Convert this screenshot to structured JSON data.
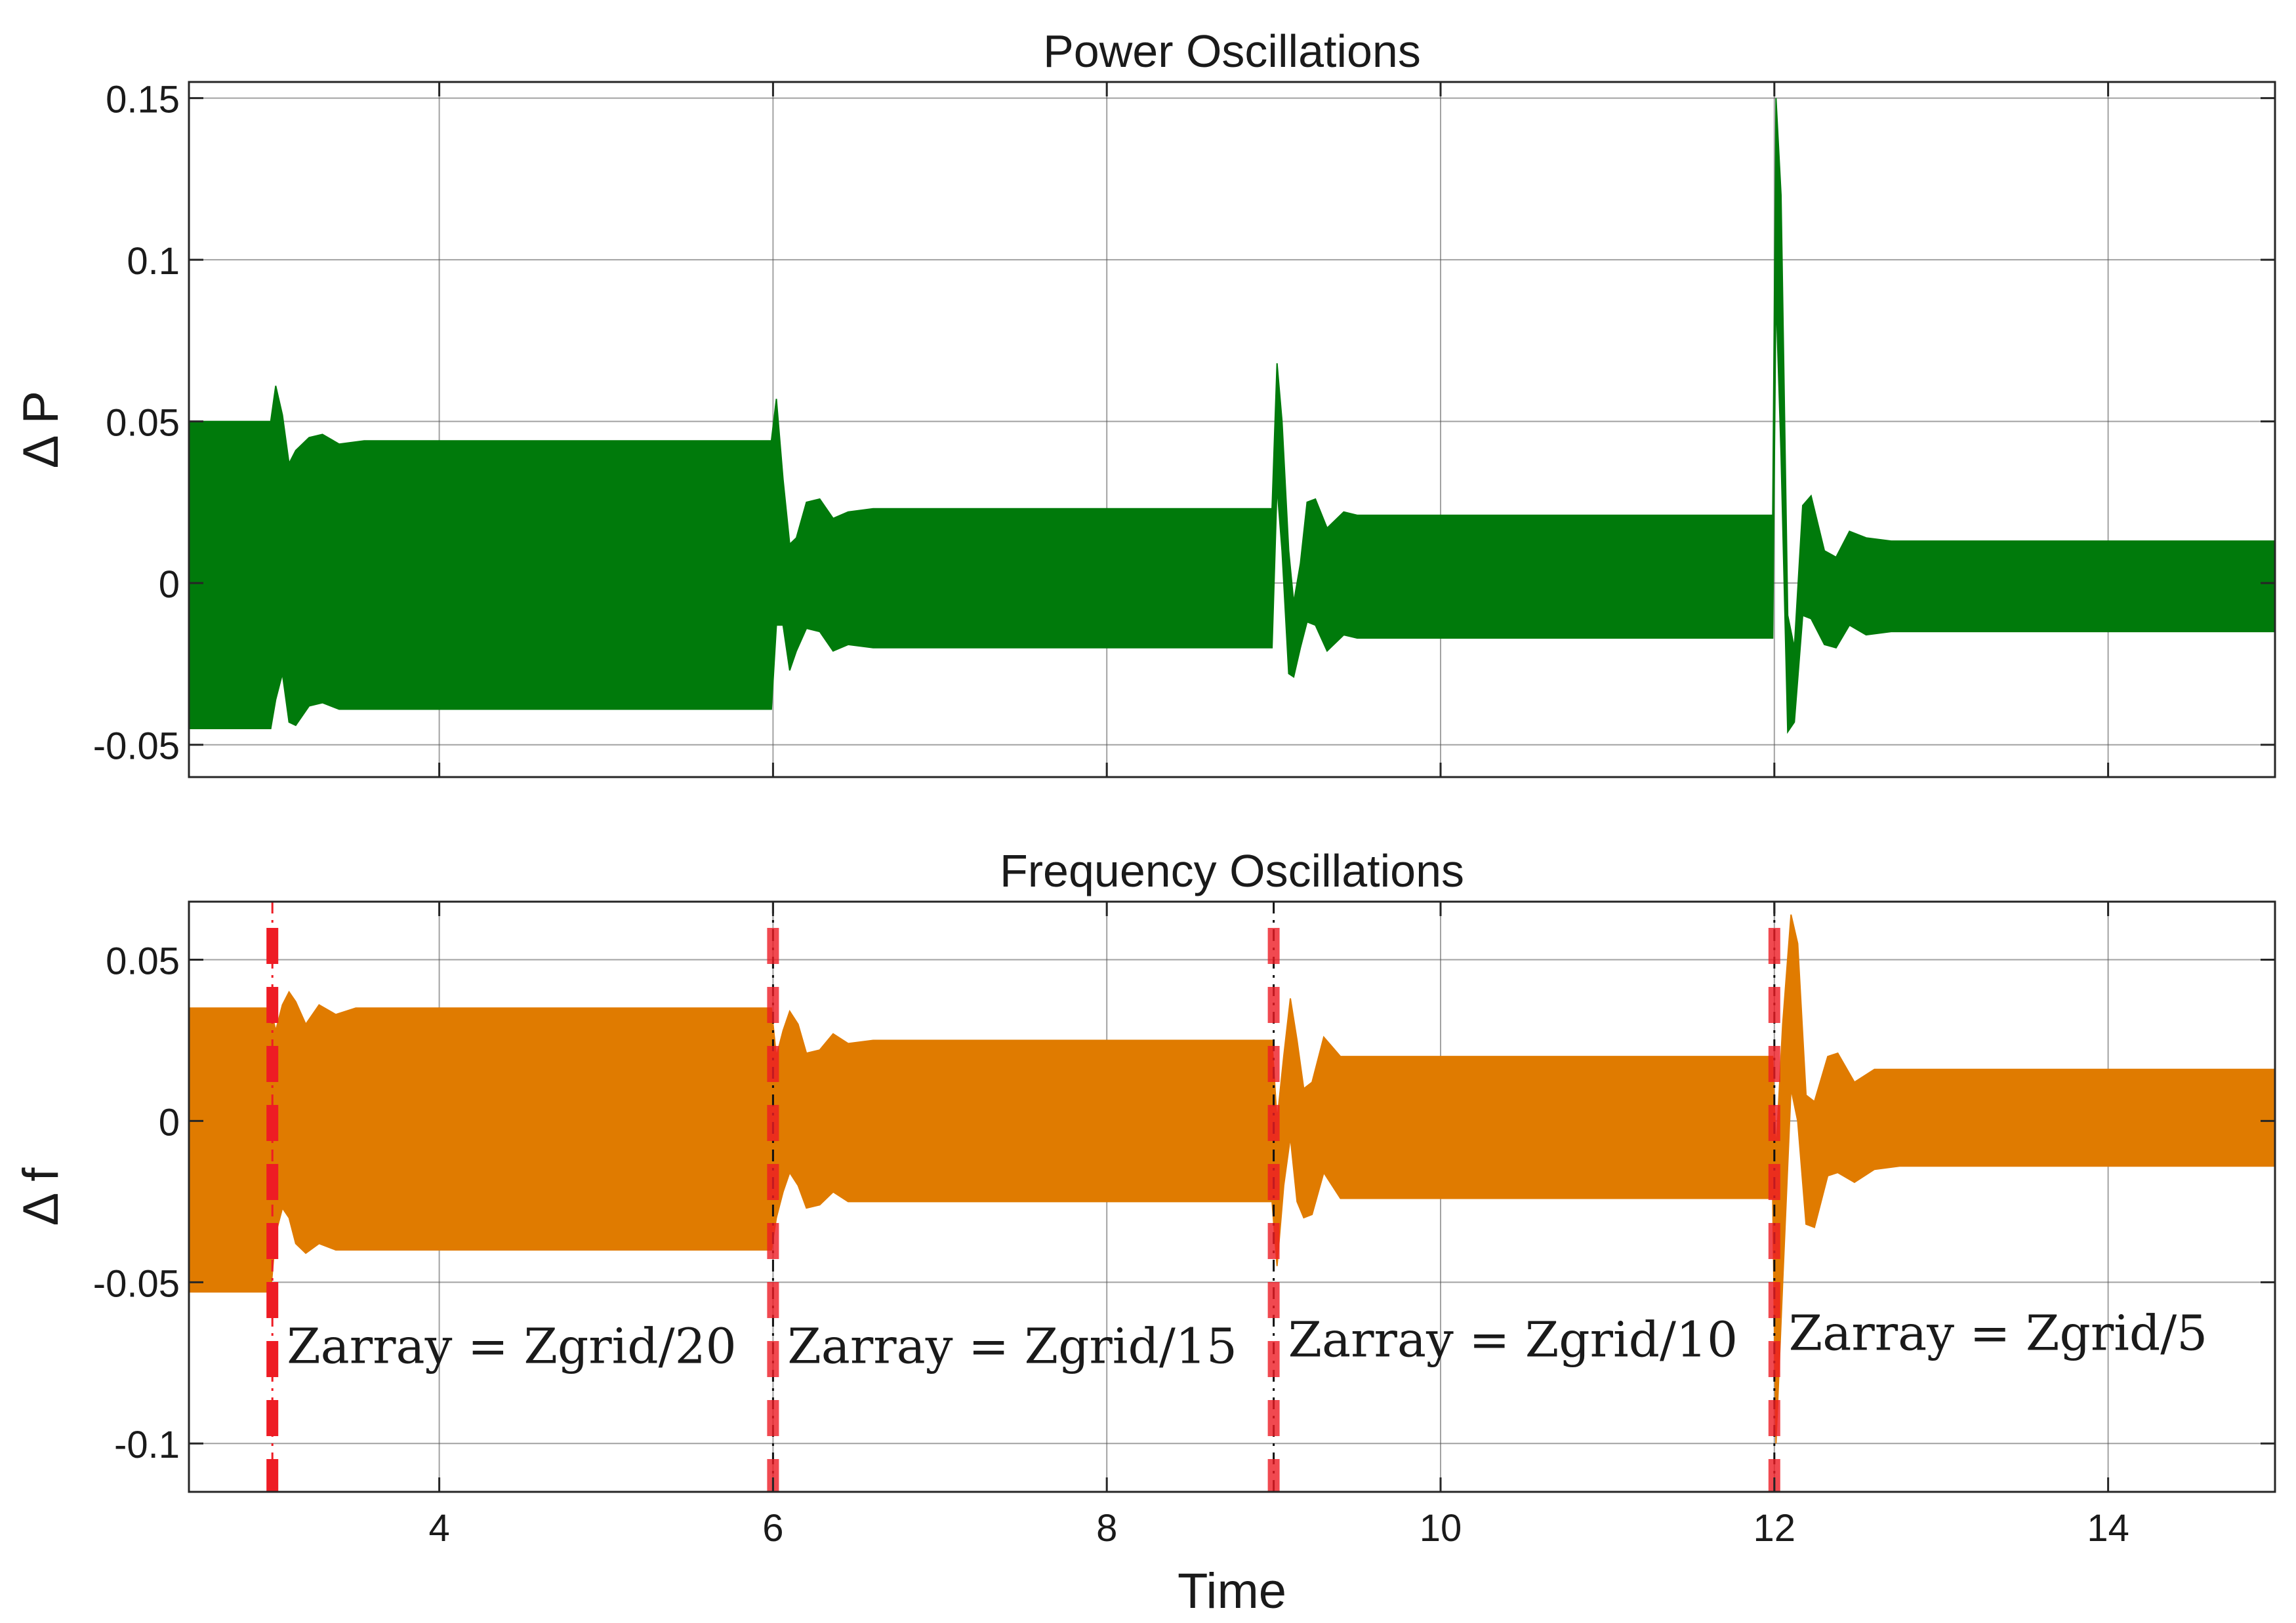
{
  "colors": {
    "power": "#007a0b",
    "frequency": "#e07b00",
    "marker_red": "#ee1c24",
    "marker_black": "#111111",
    "grid": "#555555"
  },
  "chart_data": [
    {
      "type": "area",
      "title": "Power Oscillations",
      "xlabel": "",
      "ylabel": "Δ P",
      "xlim": [
        2.5,
        15
      ],
      "ylim": [
        -0.06,
        0.155
      ],
      "xticks": [
        4,
        6,
        8,
        10,
        12,
        14
      ],
      "xtick_labels_shown": false,
      "yticks": [
        -0.05,
        0,
        0.05,
        0.1,
        0.15
      ],
      "ytick_labels": [
        "-0.05",
        "0",
        "0.05",
        "0.1",
        "0.15"
      ],
      "grid": true,
      "series": [
        {
          "color": "#007a0b",
          "envelope": [
            {
              "x": 2.5,
              "hi": 0.05,
              "lo": -0.045
            },
            {
              "x": 2.99,
              "hi": 0.05,
              "lo": -0.045
            },
            {
              "x": 3.02,
              "hi": 0.061,
              "lo": -0.036
            },
            {
              "x": 3.06,
              "hi": 0.052,
              "lo": -0.028
            },
            {
              "x": 3.1,
              "hi": 0.037,
              "lo": -0.043
            },
            {
              "x": 3.14,
              "hi": 0.041,
              "lo": -0.044
            },
            {
              "x": 3.22,
              "hi": 0.045,
              "lo": -0.038
            },
            {
              "x": 3.3,
              "hi": 0.046,
              "lo": -0.037
            },
            {
              "x": 3.4,
              "hi": 0.043,
              "lo": -0.039
            },
            {
              "x": 3.55,
              "hi": 0.044,
              "lo": -0.039
            },
            {
              "x": 5.99,
              "hi": 0.044,
              "lo": -0.039
            },
            {
              "x": 6.02,
              "hi": 0.057,
              "lo": -0.013
            },
            {
              "x": 6.06,
              "hi": 0.032,
              "lo": -0.013
            },
            {
              "x": 6.1,
              "hi": 0.012,
              "lo": -0.027
            },
            {
              "x": 6.14,
              "hi": 0.014,
              "lo": -0.021
            },
            {
              "x": 6.2,
              "hi": 0.025,
              "lo": -0.014
            },
            {
              "x": 6.28,
              "hi": 0.026,
              "lo": -0.015
            },
            {
              "x": 6.36,
              "hi": 0.02,
              "lo": -0.021
            },
            {
              "x": 6.45,
              "hi": 0.022,
              "lo": -0.019
            },
            {
              "x": 6.6,
              "hi": 0.023,
              "lo": -0.02
            },
            {
              "x": 8.99,
              "hi": 0.023,
              "lo": -0.02
            },
            {
              "x": 9.02,
              "hi": 0.068,
              "lo": 0.03
            },
            {
              "x": 9.05,
              "hi": 0.05,
              "lo": 0.01
            },
            {
              "x": 9.09,
              "hi": 0.01,
              "lo": -0.028
            },
            {
              "x": 9.12,
              "hi": -0.006,
              "lo": -0.029
            },
            {
              "x": 9.16,
              "hi": 0.006,
              "lo": -0.02
            },
            {
              "x": 9.2,
              "hi": 0.025,
              "lo": -0.012
            },
            {
              "x": 9.25,
              "hi": 0.026,
              "lo": -0.013
            },
            {
              "x": 9.32,
              "hi": 0.017,
              "lo": -0.021
            },
            {
              "x": 9.42,
              "hi": 0.022,
              "lo": -0.016
            },
            {
              "x": 9.5,
              "hi": 0.021,
              "lo": -0.017
            },
            {
              "x": 11.99,
              "hi": 0.021,
              "lo": -0.017
            },
            {
              "x": 12.01,
              "hi": 0.15,
              "lo": 0.09
            },
            {
              "x": 12.04,
              "hi": 0.12,
              "lo": 0.04
            },
            {
              "x": 12.08,
              "hi": -0.01,
              "lo": -0.046
            },
            {
              "x": 12.12,
              "hi": -0.02,
              "lo": -0.043
            },
            {
              "x": 12.17,
              "hi": 0.024,
              "lo": -0.01
            },
            {
              "x": 12.22,
              "hi": 0.027,
              "lo": -0.011
            },
            {
              "x": 12.3,
              "hi": 0.01,
              "lo": -0.019
            },
            {
              "x": 12.37,
              "hi": 0.008,
              "lo": -0.02
            },
            {
              "x": 12.45,
              "hi": 0.016,
              "lo": -0.013
            },
            {
              "x": 12.55,
              "hi": 0.014,
              "lo": -0.016
            },
            {
              "x": 12.7,
              "hi": 0.013,
              "lo": -0.015
            },
            {
              "x": 15,
              "hi": 0.013,
              "lo": -0.015
            }
          ]
        }
      ]
    },
    {
      "type": "area",
      "title": "Frequency Oscillations",
      "xlabel": "Time",
      "ylabel": "Δ f",
      "xlim": [
        2.5,
        15
      ],
      "ylim": [
        -0.115,
        0.068
      ],
      "xticks": [
        4,
        6,
        8,
        10,
        12,
        14
      ],
      "xtick_labels": [
        "4",
        "6",
        "8",
        "10",
        "12",
        "14"
      ],
      "yticks": [
        -0.1,
        -0.05,
        0,
        0.05
      ],
      "ytick_labels": [
        "-0.1",
        "-0.05",
        "0",
        "0.05"
      ],
      "grid": true,
      "series": [
        {
          "color": "#e07b00",
          "envelope": [
            {
              "x": 2.5,
              "hi": 0.035,
              "lo": -0.053
            },
            {
              "x": 2.99,
              "hi": 0.035,
              "lo": -0.053
            },
            {
              "x": 3.02,
              "hi": 0.028,
              "lo": -0.035
            },
            {
              "x": 3.06,
              "hi": 0.036,
              "lo": -0.027
            },
            {
              "x": 3.1,
              "hi": 0.04,
              "lo": -0.03
            },
            {
              "x": 3.14,
              "hi": 0.037,
              "lo": -0.038
            },
            {
              "x": 3.2,
              "hi": 0.03,
              "lo": -0.041
            },
            {
              "x": 3.28,
              "hi": 0.036,
              "lo": -0.038
            },
            {
              "x": 3.38,
              "hi": 0.033,
              "lo": -0.04
            },
            {
              "x": 3.5,
              "hi": 0.035,
              "lo": -0.04
            },
            {
              "x": 5.99,
              "hi": 0.035,
              "lo": -0.04
            },
            {
              "x": 6.02,
              "hi": 0.02,
              "lo": -0.03
            },
            {
              "x": 6.06,
              "hi": 0.028,
              "lo": -0.022
            },
            {
              "x": 6.1,
              "hi": 0.034,
              "lo": -0.016
            },
            {
              "x": 6.15,
              "hi": 0.03,
              "lo": -0.02
            },
            {
              "x": 6.2,
              "hi": 0.021,
              "lo": -0.027
            },
            {
              "x": 6.28,
              "hi": 0.022,
              "lo": -0.026
            },
            {
              "x": 6.36,
              "hi": 0.027,
              "lo": -0.022
            },
            {
              "x": 6.45,
              "hi": 0.024,
              "lo": -0.025
            },
            {
              "x": 6.6,
              "hi": 0.025,
              "lo": -0.025
            },
            {
              "x": 8.99,
              "hi": 0.025,
              "lo": -0.025
            },
            {
              "x": 9.02,
              "hi": 0.0,
              "lo": -0.045
            },
            {
              "x": 9.06,
              "hi": 0.02,
              "lo": -0.02
            },
            {
              "x": 9.1,
              "hi": 0.038,
              "lo": -0.005
            },
            {
              "x": 9.14,
              "hi": 0.025,
              "lo": -0.025
            },
            {
              "x": 9.18,
              "hi": 0.01,
              "lo": -0.03
            },
            {
              "x": 9.23,
              "hi": 0.012,
              "lo": -0.029
            },
            {
              "x": 9.3,
              "hi": 0.026,
              "lo": -0.016
            },
            {
              "x": 9.4,
              "hi": 0.02,
              "lo": -0.024
            },
            {
              "x": 9.55,
              "hi": 0.02,
              "lo": -0.024
            },
            {
              "x": 11.99,
              "hi": 0.02,
              "lo": -0.024
            },
            {
              "x": 12.01,
              "hi": -0.01,
              "lo": -0.1
            },
            {
              "x": 12.05,
              "hi": 0.03,
              "lo": -0.05
            },
            {
              "x": 12.1,
              "hi": 0.064,
              "lo": 0.01
            },
            {
              "x": 12.14,
              "hi": 0.055,
              "lo": 0.0
            },
            {
              "x": 12.19,
              "hi": 0.008,
              "lo": -0.032
            },
            {
              "x": 12.24,
              "hi": 0.006,
              "lo": -0.033
            },
            {
              "x": 12.32,
              "hi": 0.02,
              "lo": -0.017
            },
            {
              "x": 12.38,
              "hi": 0.021,
              "lo": -0.016
            },
            {
              "x": 12.48,
              "hi": 0.012,
              "lo": -0.019
            },
            {
              "x": 12.6,
              "hi": 0.016,
              "lo": -0.015
            },
            {
              "x": 12.75,
              "hi": 0.016,
              "lo": -0.014
            },
            {
              "x": 15,
              "hi": 0.016,
              "lo": -0.014
            }
          ]
        }
      ],
      "event_markers": [
        {
          "x": 3,
          "line_color": "#ee1c24",
          "label": "Zarray = Zgrid/20",
          "label_y": -0.075
        },
        {
          "x": 6,
          "line_color": "#111111",
          "label": "Zarray = Zgrid/15",
          "label_y": -0.075
        },
        {
          "x": 9,
          "line_color": "#111111",
          "label": "Zarray = Zgrid/10",
          "label_y": -0.073
        },
        {
          "x": 12,
          "line_color": "#111111",
          "label": "Zarray = Zgrid/5",
          "label_y": -0.071
        }
      ]
    }
  ]
}
